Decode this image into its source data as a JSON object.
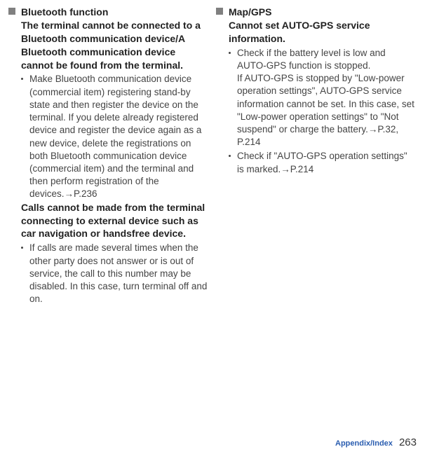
{
  "left": {
    "heading": "Bluetooth function",
    "subheading": "The terminal cannot be connected to a Bluetooth communication device/A Bluetooth communication device cannot be found from the terminal.",
    "bullet1": "Make Bluetooth communication device (commercial item) registering stand-by state and then register the device on the terminal. If you delete already registered device and register the device again as a new device, delete the registrations on both Bluetooth communication device (commercial item) and the terminal and then perform registration of the devices.→P.236",
    "subheading2": "Calls cannot be made from the terminal connecting to external device such as car navigation or handsfree device.",
    "bullet2": "If calls are made several times when the other party does not answer or is out of service, the call to this number may be disabled. In this case, turn terminal off and on."
  },
  "right": {
    "heading": "Map/GPS",
    "subheading": "Cannot set AUTO-GPS service information.",
    "bullet1a": "Check if the battery level is low and AUTO-GPS function is stopped.",
    "bullet1b": "If AUTO-GPS is stopped by \"Low-power operation settings\", AUTO-GPS service information cannot be set. In this case, set \"Low-power operation settings\" to \"Not suspend\" or charge the battery.→P.32, P.214",
    "bullet2": "Check if \"AUTO-GPS operation settings\" is marked.→P.214"
  },
  "footer": {
    "label": "Appendix/Index",
    "page": "263"
  }
}
